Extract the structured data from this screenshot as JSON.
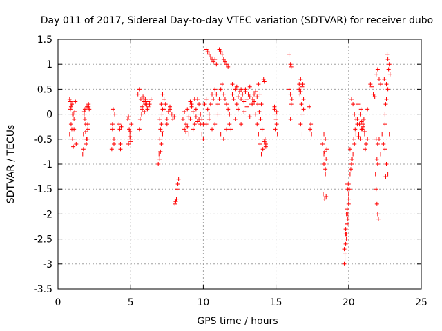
{
  "chart_data": {
    "type": "scatter",
    "title": "Day 011 of 2017, Sidereal Day-to-day VTEC variation (SDTVAR) for receiver dubo",
    "xlabel": "GPS time / hours",
    "ylabel": "SDTVAR / TECUs",
    "xlim": [
      0,
      25
    ],
    "ylim": [
      -3.5,
      1.5
    ],
    "xticks": [
      0,
      5,
      10,
      15,
      20,
      25
    ],
    "xtick_labels": [
      "0",
      "5",
      "10",
      "15",
      "20",
      "25"
    ],
    "yticks": [
      1.5,
      1,
      0.5,
      0,
      -0.5,
      -1,
      -1.5,
      -2,
      -2.5,
      -3,
      -3.5
    ],
    "ytick_labels": [
      "1.5",
      "1",
      "0.5",
      "0",
      "-0.5",
      "-1",
      "-1.5",
      "-2",
      "-2.5",
      "-3",
      "-3.5"
    ],
    "grid": true,
    "marker": "+",
    "color": "#ff0000",
    "series": [
      {
        "name": "SDTVAR",
        "x": [
          0.8,
          0.85,
          0.9,
          0.95,
          1.0,
          1.05,
          1.1,
          1.2,
          1.25,
          0.8,
          0.9,
          1.0,
          1.1,
          0.85,
          0.95,
          1.05,
          1.15,
          1.7,
          1.75,
          1.8,
          1.85,
          1.9,
          1.95,
          2.0,
          2.05,
          2.1,
          2.15,
          1.75,
          1.85,
          1.95,
          2.05,
          1.8,
          1.9,
          2.0,
          2.1,
          3.7,
          3.75,
          3.8,
          3.85,
          3.9,
          3.75,
          3.85,
          4.2,
          4.25,
          4.3,
          4.3,
          4.35,
          4.8,
          4.85,
          4.9,
          4.95,
          5.0,
          5.05,
          4.85,
          4.95,
          5.0,
          5.6,
          5.7,
          5.8,
          5.9,
          6.0,
          6.1,
          6.2,
          6.3,
          6.4,
          5.5,
          5.65,
          5.75,
          5.85,
          5.95,
          6.05,
          6.15,
          5.6,
          5.8,
          6.0,
          6.2,
          6.9,
          6.95,
          7.0,
          7.05,
          7.1,
          7.15,
          7.2,
          7.3,
          7.4,
          7.5,
          7.6,
          7.7,
          7.8,
          7.9,
          8.0,
          7.0,
          7.1,
          7.2,
          7.0,
          7.1,
          7.2,
          7.3,
          7.5,
          7.7,
          7.9,
          7.05,
          7.15,
          8.05,
          8.1,
          8.15,
          8.2,
          8.25,
          8.3,
          8.6,
          8.7,
          8.8,
          8.9,
          9.0,
          9.1,
          9.2,
          9.3,
          9.4,
          9.5,
          9.6,
          9.7,
          9.8,
          9.9,
          10.0,
          8.7,
          8.9,
          9.1,
          9.3,
          9.5,
          9.7,
          9.9,
          8.8,
          9.2,
          9.6,
          10.0,
          9.0,
          9.4,
          9.8,
          10.2,
          10.3,
          10.4,
          10.5,
          10.6,
          10.7,
          10.8,
          10.9,
          10.1,
          10.2,
          10.3,
          10.4,
          10.5,
          10.6,
          10.7,
          10.8,
          10.9,
          11.0,
          11.1,
          11.2,
          11.3,
          11.4,
          11.5,
          11.6,
          11.7,
          11.8,
          11.9,
          10.2,
          10.4,
          10.6,
          10.8,
          11.0,
          11.2,
          11.4,
          11.6,
          11.8,
          11.1,
          11.2,
          11.3,
          11.4,
          11.5,
          11.6,
          11.7,
          12.0,
          12.1,
          12.2,
          12.3,
          12.4,
          12.5,
          12.6,
          12.7,
          12.8,
          12.9,
          13.0,
          13.1,
          13.2,
          13.3,
          13.4,
          13.5,
          13.6,
          13.7,
          12.2,
          12.4,
          12.6,
          12.8,
          13.0,
          13.2,
          13.4,
          13.6,
          12.0,
          12.3,
          12.6,
          12.9,
          13.2,
          13.5,
          13.7,
          13.8,
          13.9,
          14.0,
          14.1,
          13.75,
          13.85,
          13.95,
          14.05,
          13.8,
          13.9,
          14.0,
          14.15,
          14.2,
          14.25,
          14.3,
          14.2,
          14.3,
          14.9,
          15.0,
          15.05,
          15.1,
          14.95,
          15.05,
          14.9,
          15.0,
          15.9,
          16.0,
          16.05,
          16.1,
          16.0,
          16.05,
          15.9,
          16.0,
          16.6,
          16.65,
          16.7,
          16.75,
          16.8,
          16.85,
          16.9,
          16.7,
          16.8,
          16.6,
          16.7,
          16.8,
          16.9,
          17.3,
          17.4,
          17.35,
          17.45,
          18.2,
          18.3,
          18.4,
          18.5,
          18.25,
          18.35,
          18.45,
          18.3,
          18.4,
          18.3,
          18.4,
          18.45,
          18.35,
          19.7,
          19.75,
          19.8,
          19.85,
          19.9,
          19.95,
          20.0,
          19.75,
          19.85,
          19.95,
          19.8,
          19.9,
          20.0,
          19.7,
          19.8,
          19.9,
          20.0,
          19.85,
          19.95,
          19.9,
          20.0,
          20.1,
          20.2,
          20.3,
          20.4,
          20.5,
          20.6,
          20.05,
          20.15,
          20.25,
          20.35,
          20.45,
          20.2,
          20.3,
          20.4,
          20.5,
          20.1,
          20.2,
          20.6,
          20.7,
          20.8,
          20.9,
          21.0,
          21.1,
          21.2,
          21.3,
          20.65,
          20.75,
          20.85,
          20.95,
          21.05,
          21.15,
          20.7,
          20.9,
          21.1,
          21.3,
          20.8,
          21.0,
          21.5,
          21.6,
          21.7,
          21.8,
          21.9,
          22.0,
          22.1,
          22.2,
          21.85,
          21.9,
          21.95,
          22.0,
          22.05,
          21.9,
          22.0,
          21.95,
          22.0,
          22.1,
          22.2,
          22.3,
          22.4,
          22.5,
          22.55,
          22.6,
          22.65,
          22.7,
          22.75,
          22.8,
          22.85,
          22.6,
          22.7,
          22.8,
          22.5,
          22.6,
          22.7,
          22.5,
          22.55,
          22.45
        ],
        "y": [
          0.3,
          0.1,
          -0.2,
          0.2,
          -0.5,
          0.0,
          -0.3,
          0.25,
          -0.6,
          -0.4,
          0.15,
          0.0,
          -0.1,
          0.25,
          -0.3,
          -0.65,
          0.05,
          -0.8,
          -0.4,
          0.0,
          0.1,
          -0.2,
          -0.5,
          0.15,
          -0.3,
          0.2,
          0.1,
          -0.7,
          -0.1,
          -0.6,
          -0.2,
          0.05,
          -0.35,
          -0.5,
          0.15,
          -0.7,
          -0.3,
          0.1,
          -0.5,
          0.0,
          -0.2,
          -0.6,
          -0.2,
          -0.3,
          -0.6,
          -0.7,
          -0.25,
          -0.1,
          -0.6,
          -0.3,
          -0.45,
          -0.5,
          -0.2,
          -0.05,
          -0.35,
          -0.55,
          0.5,
          0.3,
          0.1,
          0.25,
          0.3,
          0.2,
          0.15,
          0.2,
          0.3,
          0.4,
          -0.1,
          0.0,
          0.35,
          0.05,
          0.3,
          0.1,
          -0.3,
          0.15,
          0.2,
          0.25,
          -1.0,
          -0.8,
          -0.5,
          -0.3,
          -0.2,
          0.0,
          0.1,
          0.3,
          0.2,
          -0.1,
          0.05,
          0.1,
          0.0,
          -0.1,
          -0.05,
          -0.9,
          -0.6,
          -0.4,
          -0.1,
          0.2,
          0.4,
          0.1,
          -0.2,
          0.15,
          0.0,
          -0.75,
          -0.35,
          -1.8,
          -1.75,
          -1.7,
          -1.5,
          -1.4,
          -1.3,
          -0.1,
          -0.3,
          -0.2,
          0.1,
          -0.4,
          -0.1,
          0.2,
          -0.3,
          -0.2,
          0.1,
          0.3,
          -0.1,
          -0.2,
          -0.4,
          -0.5,
          0.05,
          -0.25,
          0.25,
          0.05,
          -0.05,
          0.2,
          -0.1,
          -0.35,
          0.15,
          -0.15,
          -0.2,
          -0.05,
          0.3,
          0.0,
          1.3,
          1.25,
          1.2,
          1.15,
          1.1,
          1.05,
          1.1,
          1.0,
          0.2,
          0.3,
          0.1,
          0.0,
          0.2,
          0.4,
          0.3,
          0.5,
          0.4,
          0.2,
          0.3,
          0.5,
          0.6,
          0.4,
          0.3,
          0.2,
          0.1,
          0.0,
          -0.3,
          -0.2,
          -0.1,
          -0.3,
          -0.2,
          0.0,
          -0.4,
          -0.5,
          -0.3,
          -0.2,
          1.3,
          1.25,
          1.2,
          1.1,
          1.05,
          1.0,
          0.95,
          0.4,
          0.3,
          0.5,
          0.2,
          0.35,
          0.45,
          0.3,
          0.4,
          0.25,
          0.5,
          0.3,
          0.4,
          0.35,
          0.2,
          0.3,
          0.25,
          0.45,
          0.35,
          -0.1,
          0.1,
          -0.2,
          0.05,
          0.15,
          -0.05,
          0.2,
          0.0,
          0.6,
          0.55,
          0.5,
          0.45,
          0.55,
          0.4,
          -0.2,
          -0.4,
          -0.6,
          -0.8,
          -0.7,
          0.2,
          0.05,
          -0.1,
          -0.3,
          0.6,
          0.4,
          0.2,
          0.7,
          0.65,
          -0.5,
          -0.6,
          -0.55,
          -0.65,
          0.1,
          0.0,
          -0.2,
          -0.4,
          -0.3,
          0.05,
          0.15,
          -0.1,
          1.2,
          1.0,
          0.95,
          0.3,
          0.4,
          0.2,
          0.5,
          -0.1,
          0.6,
          0.4,
          0.7,
          0.2,
          0.0,
          0.6,
          0.3,
          -0.2,
          -0.4,
          0.5,
          0.45,
          0.55,
          0.1,
          0.15,
          -0.2,
          -0.3,
          -0.4,
          -0.6,
          -0.8,
          -1.1,
          -0.7,
          -1.6,
          -1.7,
          -1.65,
          -0.4,
          -0.5,
          -1.0,
          -1.2,
          -0.9,
          -0.75,
          -3.0,
          -2.8,
          -2.6,
          -2.4,
          -2.2,
          -2.0,
          -1.8,
          -2.9,
          -2.5,
          -2.1,
          -2.3,
          -1.9,
          -1.6,
          -2.7,
          -2.4,
          -2.2,
          -1.7,
          -2.0,
          -1.5,
          -1.4,
          -1.4,
          -1.2,
          -1.0,
          -0.8,
          -0.6,
          -0.4,
          -0.2,
          -1.5,
          -1.1,
          -0.9,
          -0.5,
          -0.3,
          0.3,
          0.2,
          0.0,
          -0.1,
          -0.7,
          -0.9,
          -0.1,
          -0.4,
          -0.5,
          -0.3,
          -0.2,
          -0.4,
          -0.6,
          -0.5,
          0.2,
          -0.2,
          0.1,
          -0.3,
          -0.1,
          -0.7,
          -0.45,
          -0.15,
          -0.35,
          0.1,
          0.0,
          -0.25,
          0.6,
          0.55,
          0.4,
          0.35,
          0.8,
          0.9,
          0.7,
          0.6,
          -1.2,
          -1.5,
          -1.8,
          -2.0,
          -2.1,
          -0.5,
          -0.6,
          -0.9,
          -1.0,
          -0.5,
          -0.8,
          -0.4,
          -0.6,
          -0.2,
          0.2,
          0.6,
          1.2,
          1.1,
          0.9,
          1.0,
          0.8,
          -1.0,
          -1.2,
          -0.4,
          0.0,
          0.3,
          0.5,
          -0.7,
          -1.25,
          0.7
        ]
      }
    ]
  }
}
